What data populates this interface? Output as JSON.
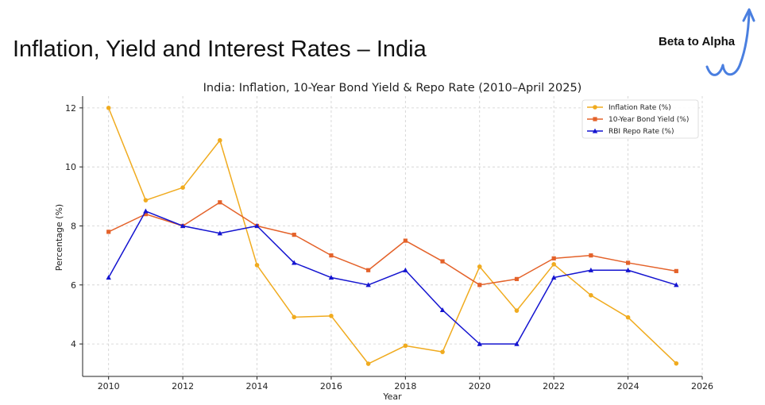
{
  "slide": {
    "title": "Inflation, Yield and Interest Rates – India",
    "brand": "Beta to Alpha",
    "brand_icon": "trend-arrow-icon",
    "brand_color": "#4a7fe0"
  },
  "chart_data": {
    "type": "line",
    "title": "India: Inflation, 10-Year Bond Yield & Repo Rate (2010–April 2025)",
    "xlabel": "Year",
    "ylabel": "Percentage (%)",
    "xlim": [
      2009.3,
      2026
    ],
    "ylim": [
      2.9,
      12.4
    ],
    "xticks": [
      2010,
      2012,
      2014,
      2016,
      2018,
      2020,
      2022,
      2024,
      2026
    ],
    "yticks": [
      4,
      6,
      8,
      10,
      12
    ],
    "grid": true,
    "legend_position": "top-right",
    "x": [
      2010,
      2011,
      2012,
      2013,
      2014,
      2015,
      2016,
      2017,
      2018,
      2019,
      2020,
      2021,
      2022,
      2023,
      2024,
      2025.3
    ],
    "series": [
      {
        "name": "Inflation Rate (%)",
        "color": "#f0ab1f",
        "marker": "circle",
        "values": [
          12.0,
          8.87,
          9.3,
          10.9,
          6.67,
          4.91,
          4.95,
          3.33,
          3.94,
          3.73,
          6.62,
          5.13,
          6.7,
          5.65,
          4.9,
          3.34
        ]
      },
      {
        "name": "10-Year Bond Yield (%)",
        "color": "#e4622a",
        "marker": "square",
        "values": [
          7.8,
          8.4,
          8.0,
          8.8,
          8.0,
          7.7,
          7.0,
          6.5,
          7.5,
          6.8,
          6.0,
          6.2,
          6.9,
          7.0,
          6.75,
          6.47
        ]
      },
      {
        "name": "RBI Repo Rate (%)",
        "color": "#1414d0",
        "marker": "triangle",
        "values": [
          6.25,
          8.5,
          8.0,
          7.75,
          8.0,
          6.75,
          6.25,
          6.0,
          6.5,
          5.15,
          4.0,
          4.0,
          6.25,
          6.5,
          6.5,
          6.0
        ]
      }
    ]
  }
}
